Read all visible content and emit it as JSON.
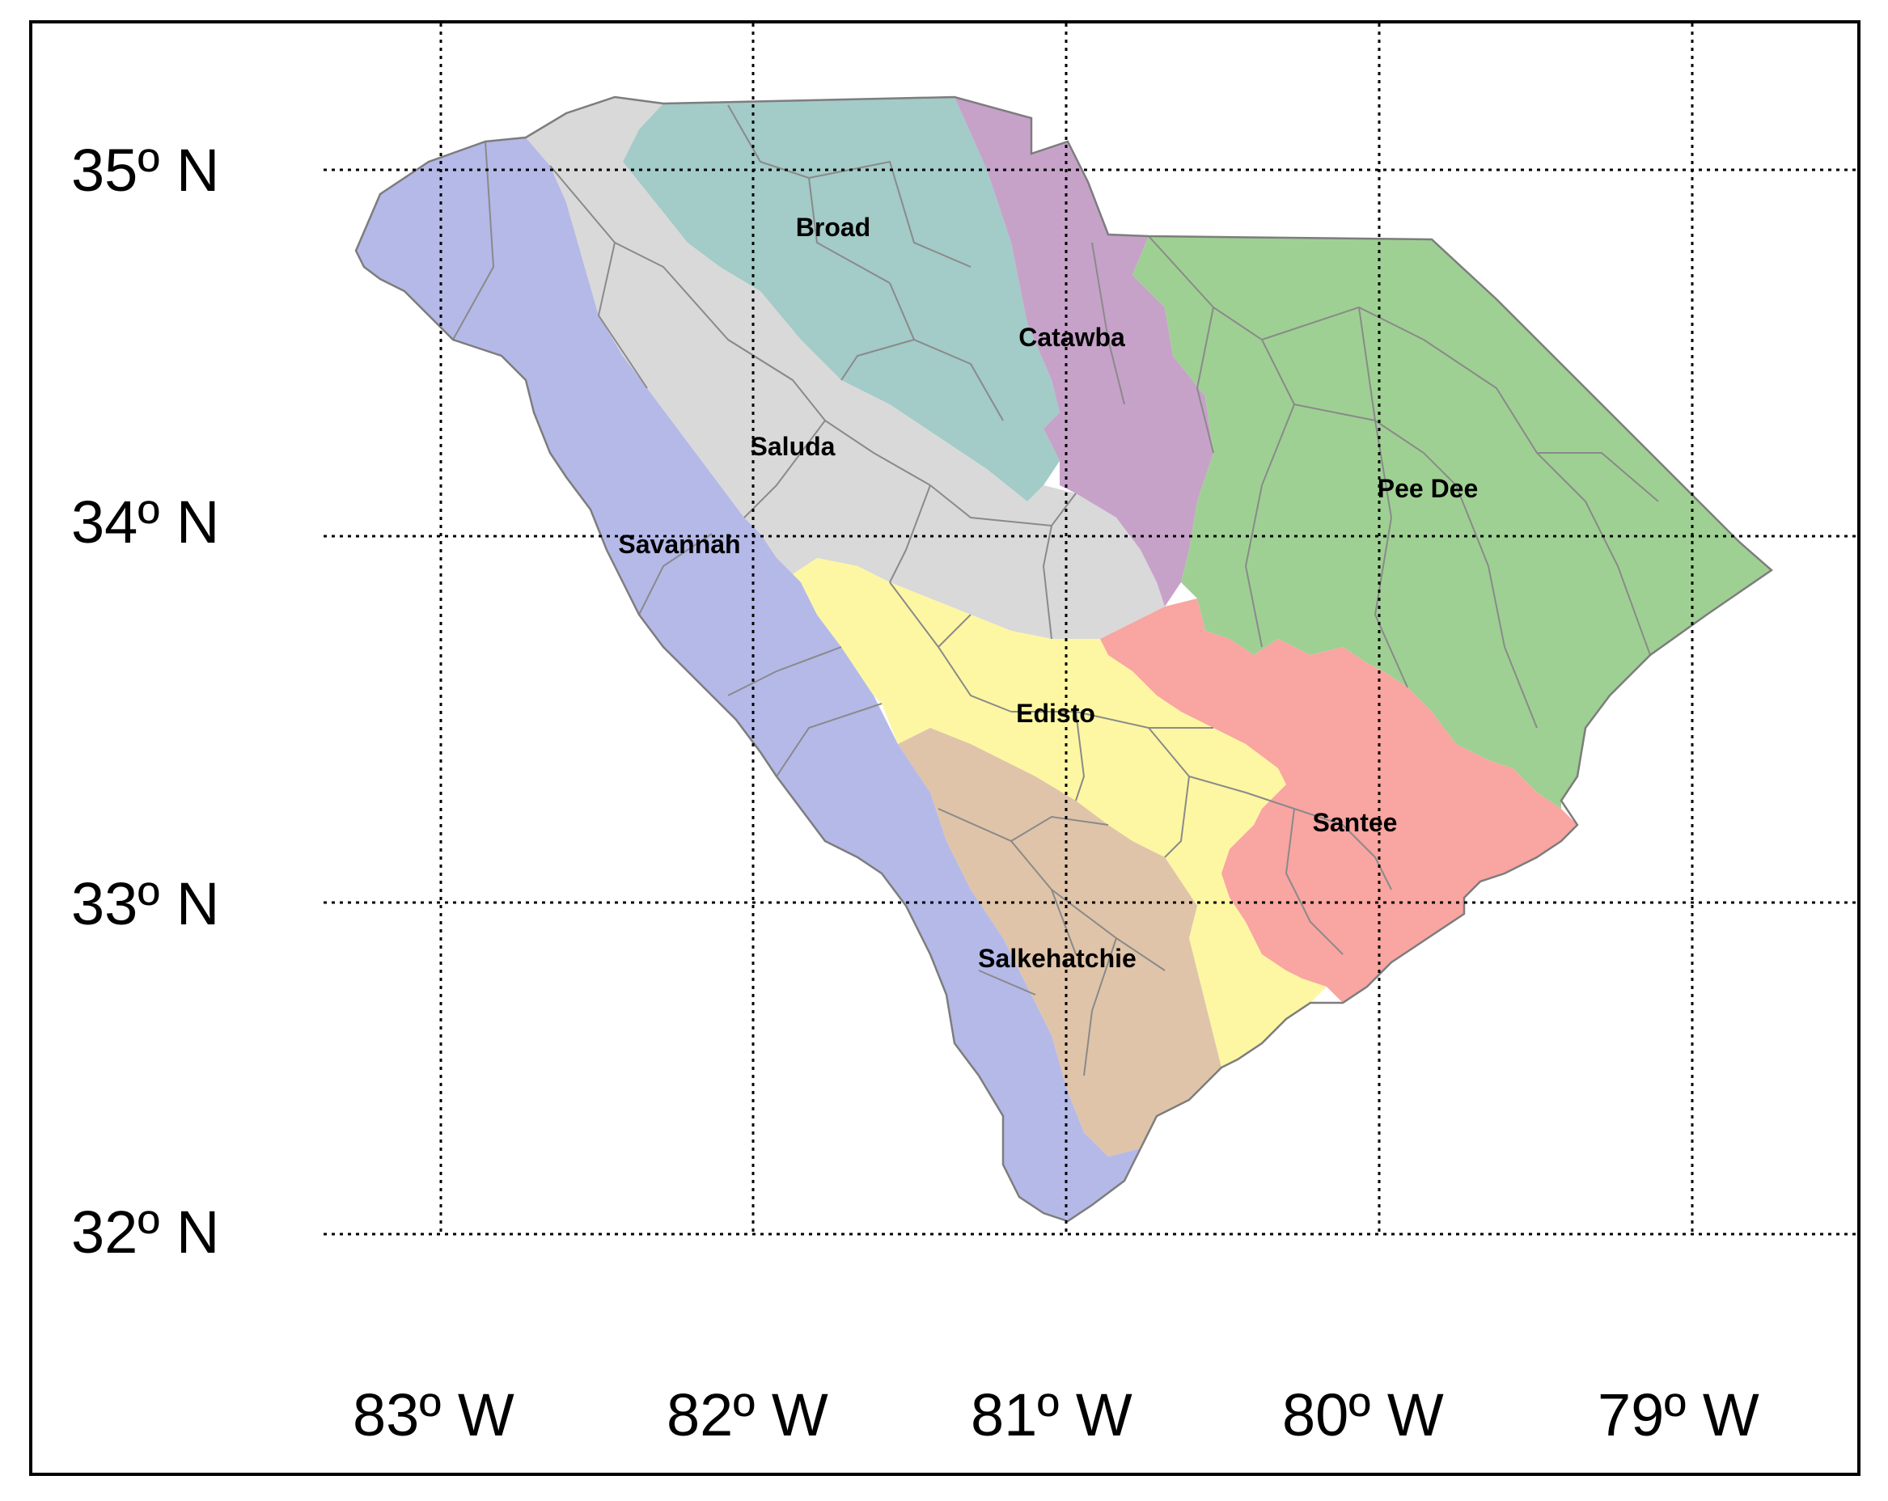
{
  "map": {
    "latitude_labels": [
      "35º N",
      "34º N",
      "33º N",
      "32º N"
    ],
    "longitude_labels": [
      "83º W",
      "82º W",
      "81º W",
      "80º W",
      "79º W"
    ],
    "basins": [
      {
        "name": "Broad",
        "color": "#a3cbc8"
      },
      {
        "name": "Catawba",
        "color": "#c6a2c9"
      },
      {
        "name": "Pee Dee",
        "color": "#9fd093"
      },
      {
        "name": "Saluda",
        "color": "#d9d9d9"
      },
      {
        "name": "Savannah",
        "color": "#b5b9e8"
      },
      {
        "name": "Edisto",
        "color": "#fdf7a3"
      },
      {
        "name": "Santee",
        "color": "#f9a5a1"
      },
      {
        "name": "Salkehatchie",
        "color": "#dfc4a9"
      }
    ]
  }
}
